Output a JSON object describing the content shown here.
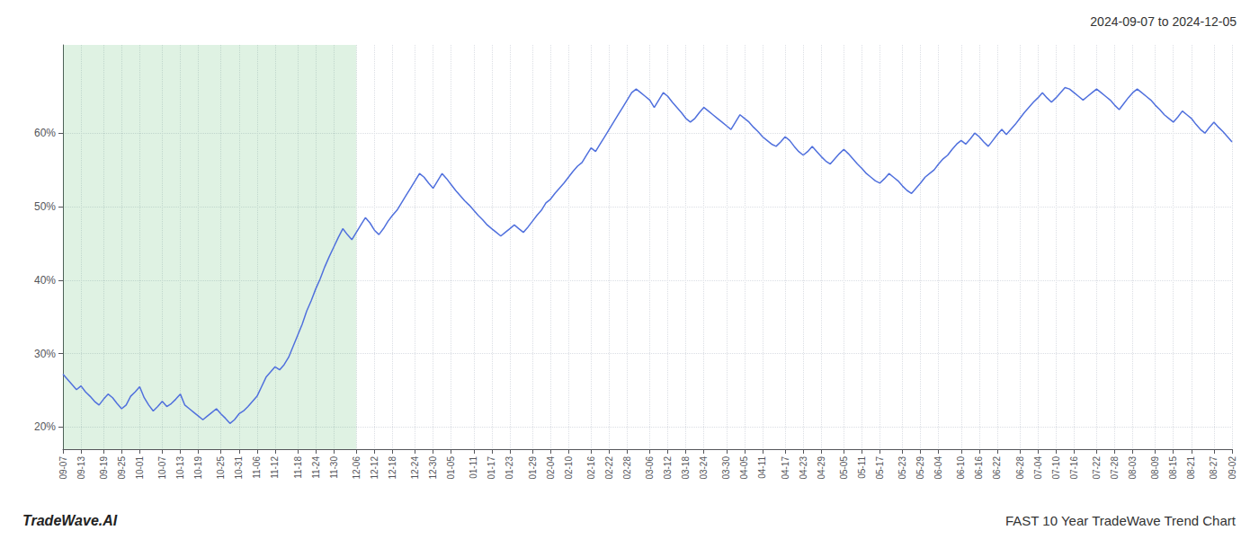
{
  "chart_data": {
    "type": "line",
    "title": "2024-09-07 to 2024-12-05",
    "annotations": [
      "TradeWave.AI",
      "FAST 10 Year TradeWave Trend Chart"
    ],
    "categories": [
      "09-07",
      null,
      null,
      null,
      "09-13",
      null,
      null,
      null,
      null,
      "09-19",
      null,
      null,
      null,
      "09-25",
      null,
      null,
      null,
      "10-01",
      null,
      null,
      null,
      null,
      "10-07",
      null,
      null,
      null,
      "10-13",
      null,
      null,
      null,
      "10-19",
      null,
      null,
      null,
      null,
      "10-25",
      null,
      null,
      null,
      "10-31",
      null,
      null,
      null,
      "11-06",
      null,
      null,
      null,
      "11-12",
      null,
      null,
      null,
      null,
      "11-18",
      null,
      null,
      null,
      "11-24",
      null,
      null,
      null,
      "11-30",
      null,
      null,
      null,
      null,
      "12-06",
      null,
      null,
      null,
      "12-12",
      null,
      null,
      null,
      "12-18",
      null,
      null,
      null,
      null,
      "12-24",
      null,
      null,
      null,
      "12-30",
      null,
      null,
      null,
      "01-05",
      null,
      null,
      null,
      null,
      "01-11",
      null,
      null,
      null,
      "01-17",
      null,
      null,
      null,
      "01-23",
      null,
      null,
      null,
      null,
      "01-29",
      null,
      null,
      null,
      "02-04",
      null,
      null,
      null,
      "02-10",
      null,
      null,
      null,
      null,
      "02-16",
      null,
      null,
      null,
      "02-22",
      null,
      null,
      null,
      "02-28",
      null,
      null,
      null,
      null,
      "03-06",
      null,
      null,
      null,
      "03-12",
      null,
      null,
      null,
      "03-18",
      null,
      null,
      null,
      "03-24",
      null,
      null,
      null,
      null,
      "03-30",
      null,
      null,
      null,
      "04-05",
      null,
      null,
      null,
      "04-11",
      null,
      null,
      null,
      null,
      "04-17",
      null,
      null,
      null,
      "04-23",
      null,
      null,
      null,
      "04-29",
      null,
      null,
      null,
      null,
      "05-05",
      null,
      null,
      null,
      "05-11",
      null,
      null,
      null,
      "05-17",
      null,
      null,
      null,
      null,
      "05-23",
      null,
      null,
      null,
      "05-29",
      null,
      null,
      null,
      "06-04",
      null,
      null,
      null,
      null,
      "06-10",
      null,
      null,
      null,
      "06-16",
      null,
      null,
      null,
      "06-22",
      null,
      null,
      null,
      null,
      "06-28",
      null,
      null,
      null,
      "07-04",
      null,
      null,
      null,
      "07-10",
      null,
      null,
      null,
      "07-16",
      null,
      null,
      null,
      null,
      "07-22",
      null,
      null,
      null,
      "07-28",
      null,
      null,
      null,
      "08-03",
      null,
      null,
      null,
      null,
      "08-09",
      null,
      null,
      null,
      "08-15",
      null,
      null,
      null,
      "08-21",
      null,
      null,
      null,
      null,
      "08-27",
      null,
      null,
      null,
      "09-02"
    ],
    "values": [
      27.2,
      26.5,
      25.8,
      25.1,
      25.6,
      24.8,
      24.2,
      23.5,
      23.0,
      23.8,
      24.5,
      24.0,
      23.2,
      22.5,
      23.0,
      24.2,
      24.8,
      25.5,
      24.0,
      23.0,
      22.2,
      22.8,
      23.5,
      22.8,
      23.2,
      23.8,
      24.5,
      23.0,
      22.5,
      22.0,
      21.5,
      21.0,
      21.5,
      22.0,
      22.5,
      21.8,
      21.2,
      20.5,
      21.0,
      21.8,
      22.2,
      22.8,
      23.5,
      24.2,
      25.5,
      26.8,
      27.5,
      28.2,
      27.8,
      28.5,
      29.5,
      31.0,
      32.5,
      34.0,
      35.8,
      37.2,
      38.8,
      40.2,
      41.8,
      43.2,
      44.5,
      45.8,
      47.0,
      46.2,
      45.5,
      46.5,
      47.5,
      48.5,
      47.8,
      46.8,
      46.2,
      47.0,
      48.0,
      48.8,
      49.5,
      50.5,
      51.5,
      52.5,
      53.5,
      54.5,
      54.0,
      53.2,
      52.5,
      53.5,
      54.5,
      53.8,
      53.0,
      52.2,
      51.5,
      50.8,
      50.2,
      49.5,
      48.8,
      48.2,
      47.5,
      47.0,
      46.5,
      46.0,
      46.5,
      47.0,
      47.5,
      47.0,
      46.5,
      47.2,
      48.0,
      48.8,
      49.5,
      50.5,
      51.0,
      51.8,
      52.5,
      53.2,
      54.0,
      54.8,
      55.5,
      56.0,
      57.0,
      58.0,
      57.5,
      58.5,
      59.5,
      60.5,
      61.5,
      62.5,
      63.5,
      64.5,
      65.5,
      66.0,
      65.5,
      65.0,
      64.5,
      63.5,
      64.5,
      65.5,
      65.0,
      64.2,
      63.5,
      62.8,
      62.0,
      61.5,
      62.0,
      62.8,
      63.5,
      63.0,
      62.5,
      62.0,
      61.5,
      61.0,
      60.5,
      61.5,
      62.5,
      62.0,
      61.5,
      60.8,
      60.2,
      59.5,
      59.0,
      58.5,
      58.2,
      58.8,
      59.5,
      59.0,
      58.2,
      57.5,
      57.0,
      57.5,
      58.2,
      57.5,
      56.8,
      56.2,
      55.8,
      56.5,
      57.2,
      57.8,
      57.2,
      56.5,
      55.8,
      55.2,
      54.5,
      54.0,
      53.5,
      53.2,
      53.8,
      54.5,
      54.0,
      53.5,
      52.8,
      52.2,
      51.8,
      52.5,
      53.2,
      54.0,
      54.5,
      55.0,
      55.8,
      56.5,
      57.0,
      57.8,
      58.5,
      59.0,
      58.5,
      59.2,
      60.0,
      59.5,
      58.8,
      58.2,
      59.0,
      59.8,
      60.5,
      59.8,
      60.5,
      61.2,
      62.0,
      62.8,
      63.5,
      64.2,
      64.8,
      65.5,
      64.8,
      64.2,
      64.8,
      65.5,
      66.2,
      66.0,
      65.5,
      65.0,
      64.5,
      65.0,
      65.5,
      66.0,
      65.5,
      65.0,
      64.5,
      63.8,
      63.2,
      64.0,
      64.8,
      65.5,
      66.0,
      65.5,
      65.0,
      64.5,
      63.8,
      63.2,
      62.5,
      62.0,
      61.5,
      62.2,
      63.0,
      62.5,
      62.0,
      61.2,
      60.5,
      60.0,
      60.8,
      61.5,
      60.8,
      60.2,
      59.5,
      58.8
    ],
    "highlight": [
      0,
      65
    ],
    "ylim": [
      17,
      72
    ],
    "yticks": [
      {
        "value": 20,
        "label": "20%"
      },
      {
        "value": 30,
        "label": "30%"
      },
      {
        "value": 40,
        "label": "40%"
      },
      {
        "value": 50,
        "label": "50%"
      },
      {
        "value": 60,
        "label": "60%"
      }
    ],
    "grid": true
  }
}
